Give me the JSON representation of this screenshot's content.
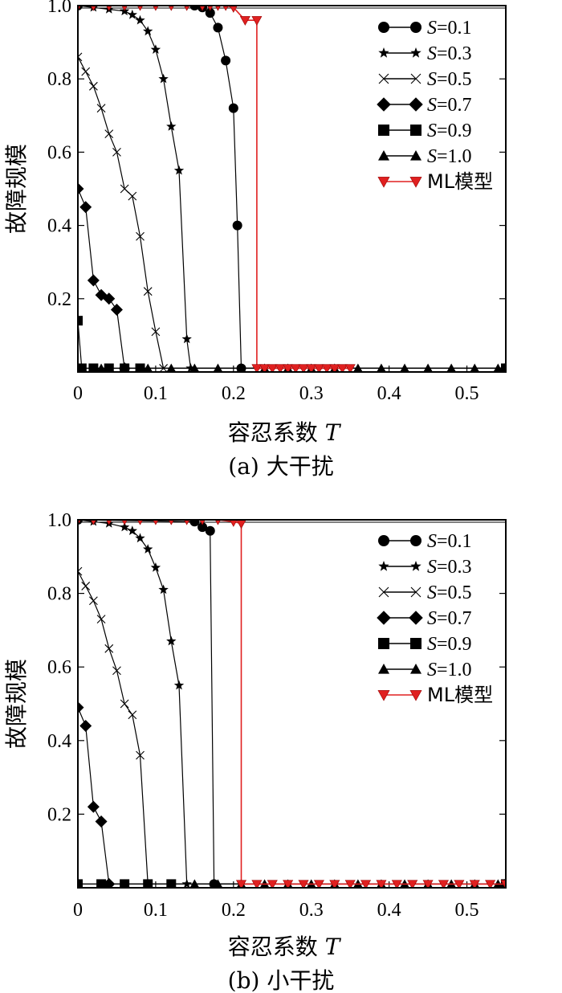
{
  "chart_data": [
    {
      "type": "line",
      "caption": "(a) 大干扰",
      "xlabel": "容忍系数",
      "xlabel_var": "T",
      "ylabel": "故障规模",
      "xlim": [
        0,
        0.55
      ],
      "ylim": [
        0,
        1.0
      ],
      "xticks": [
        "0",
        "0.1",
        "0.2",
        "0.3",
        "0.4",
        "0.5"
      ],
      "yticks": [
        "0.2",
        "0.4",
        "0.6",
        "0.8",
        "1.0"
      ],
      "legend_position": "top-right",
      "series": [
        {
          "name": "S=0.1",
          "label_var": "S",
          "label_rest": "=0.1",
          "marker": "circle",
          "color": "#000000",
          "x": [
            0,
            0.15,
            0.16,
            0.17,
            0.18,
            0.19,
            0.2,
            0.205,
            0.21,
            0.55
          ],
          "y": [
            1.0,
            1.0,
            0.995,
            0.98,
            0.94,
            0.85,
            0.72,
            0.4,
            0.01,
            0.01
          ]
        },
        {
          "name": "S=0.3",
          "label_var": "S",
          "label_rest": "=0.3",
          "marker": "star",
          "color": "#000000",
          "x": [
            0,
            0.02,
            0.04,
            0.06,
            0.07,
            0.08,
            0.09,
            0.1,
            0.11,
            0.12,
            0.13,
            0.14,
            0.145,
            0.55
          ],
          "y": [
            1.0,
            0.995,
            0.99,
            0.985,
            0.975,
            0.96,
            0.93,
            0.88,
            0.8,
            0.67,
            0.55,
            0.09,
            0.01,
            0.01
          ]
        },
        {
          "name": "S=0.5",
          "label_var": "S",
          "label_rest": "=0.5",
          "marker": "cross",
          "color": "#000000",
          "x": [
            0,
            0.01,
            0.02,
            0.03,
            0.04,
            0.05,
            0.06,
            0.07,
            0.08,
            0.09,
            0.1,
            0.11,
            0.55
          ],
          "y": [
            0.86,
            0.82,
            0.78,
            0.72,
            0.65,
            0.6,
            0.5,
            0.48,
            0.37,
            0.22,
            0.11,
            0.01,
            0.01
          ]
        },
        {
          "name": "S=0.7",
          "label_var": "S",
          "label_rest": "=0.7",
          "marker": "diamond",
          "color": "#000000",
          "x": [
            0,
            0.01,
            0.02,
            0.03,
            0.04,
            0.05,
            0.06,
            0.55
          ],
          "y": [
            0.5,
            0.45,
            0.25,
            0.21,
            0.2,
            0.17,
            0.01,
            0.01
          ]
        },
        {
          "name": "S=0.9",
          "label_var": "S",
          "label_rest": "=0.9",
          "marker": "square",
          "color": "#000000",
          "x": [
            0,
            0.005,
            0.02,
            0.04,
            0.06,
            0.08,
            0.55
          ],
          "y": [
            0.14,
            0.01,
            0.01,
            0.01,
            0.01,
            0.01,
            0.01
          ]
        },
        {
          "name": "S=1.0",
          "label_var": "S",
          "label_rest": "=1.0",
          "marker": "triangle",
          "color": "#000000",
          "x": [
            0,
            0.03,
            0.06,
            0.09,
            0.12,
            0.15,
            0.18,
            0.21,
            0.24,
            0.27,
            0.3,
            0.33,
            0.36,
            0.39,
            0.42,
            0.45,
            0.48,
            0.51,
            0.54
          ],
          "y": [
            0.01,
            0.01,
            0.01,
            0.01,
            0.01,
            0.01,
            0.01,
            0.01,
            0.01,
            0.01,
            0.01,
            0.01,
            0.01,
            0.01,
            0.01,
            0.01,
            0.01,
            0.01,
            0.01
          ]
        },
        {
          "name": "ML模型",
          "label_var": "",
          "label_rest": "ML模型",
          "marker": "triangle-down",
          "color": "#e02020",
          "x": [
            0,
            0.02,
            0.04,
            0.06,
            0.08,
            0.1,
            0.12,
            0.14,
            0.16,
            0.17,
            0.18,
            0.19,
            0.2,
            0.215,
            0.23,
            0.23,
            0.24,
            0.25,
            0.26,
            0.27,
            0.28,
            0.29,
            0.3,
            0.31,
            0.32,
            0.33,
            0.34,
            0.35
          ],
          "y": [
            1.0,
            1.0,
            1.0,
            1.0,
            1.0,
            1.0,
            1.0,
            1.0,
            1.0,
            1.0,
            1.0,
            1.0,
            0.995,
            0.96,
            0.96,
            0.01,
            0.01,
            0.01,
            0.01,
            0.01,
            0.01,
            0.01,
            0.01,
            0.01,
            0.01,
            0.01,
            0.01,
            0.01
          ]
        }
      ]
    },
    {
      "type": "line",
      "caption": "(b) 小干扰",
      "xlabel": "容忍系数",
      "xlabel_var": "T",
      "ylabel": "故障规模",
      "xlim": [
        0,
        0.55
      ],
      "ylim": [
        0,
        1.0
      ],
      "xticks": [
        "0",
        "0.1",
        "0.2",
        "0.3",
        "0.4",
        "0.5"
      ],
      "yticks": [
        "0.2",
        "0.4",
        "0.6",
        "0.8",
        "1.0"
      ],
      "legend_position": "top-right",
      "series": [
        {
          "name": "S=0.1",
          "label_var": "S",
          "label_rest": "=0.1",
          "marker": "circle",
          "color": "#000000",
          "x": [
            0,
            0.15,
            0.16,
            0.17,
            0.175,
            0.55
          ],
          "y": [
            1.0,
            0.995,
            0.98,
            0.97,
            0.01,
            0.01
          ]
        },
        {
          "name": "S=0.3",
          "label_var": "S",
          "label_rest": "=0.3",
          "marker": "star",
          "color": "#000000",
          "x": [
            0,
            0.02,
            0.04,
            0.06,
            0.07,
            0.08,
            0.09,
            0.1,
            0.11,
            0.12,
            0.13,
            0.14,
            0.55
          ],
          "y": [
            1.0,
            0.995,
            0.99,
            0.98,
            0.97,
            0.95,
            0.92,
            0.87,
            0.81,
            0.67,
            0.55,
            0.01,
            0.01
          ]
        },
        {
          "name": "S=0.5",
          "label_var": "S",
          "label_rest": "=0.5",
          "marker": "cross",
          "color": "#000000",
          "x": [
            0,
            0.01,
            0.02,
            0.03,
            0.04,
            0.05,
            0.06,
            0.07,
            0.08,
            0.09,
            0.55
          ],
          "y": [
            0.86,
            0.82,
            0.78,
            0.73,
            0.65,
            0.59,
            0.5,
            0.47,
            0.36,
            0.01,
            0.01
          ]
        },
        {
          "name": "S=0.7",
          "label_var": "S",
          "label_rest": "=0.7",
          "marker": "diamond",
          "color": "#000000",
          "x": [
            0,
            0.01,
            0.02,
            0.03,
            0.04,
            0.55
          ],
          "y": [
            0.49,
            0.44,
            0.22,
            0.18,
            0.01,
            0.01
          ]
        },
        {
          "name": "S=0.9",
          "label_var": "S",
          "label_rest": "=0.9",
          "marker": "square",
          "color": "#000000",
          "x": [
            0,
            0.03,
            0.06,
            0.09,
            0.12,
            0.55
          ],
          "y": [
            0.01,
            0.01,
            0.01,
            0.01,
            0.01,
            0.01
          ]
        },
        {
          "name": "S=1.0",
          "label_var": "S",
          "label_rest": "=1.0",
          "marker": "triangle",
          "color": "#000000",
          "x": [
            0,
            0.03,
            0.06,
            0.09,
            0.12,
            0.15,
            0.18,
            0.21,
            0.24,
            0.27,
            0.3,
            0.33,
            0.36,
            0.39,
            0.42,
            0.45,
            0.48,
            0.51,
            0.54
          ],
          "y": [
            0.01,
            0.01,
            0.01,
            0.01,
            0.01,
            0.01,
            0.01,
            0.01,
            0.01,
            0.01,
            0.01,
            0.01,
            0.01,
            0.01,
            0.01,
            0.01,
            0.01,
            0.01,
            0.01
          ]
        },
        {
          "name": "ML模型",
          "label_var": "",
          "label_rest": "ML模型",
          "marker": "triangle-down",
          "color": "#e02020",
          "x": [
            0,
            0.02,
            0.04,
            0.06,
            0.08,
            0.1,
            0.12,
            0.14,
            0.16,
            0.18,
            0.2,
            0.21,
            0.21,
            0.23,
            0.25,
            0.27,
            0.29,
            0.31,
            0.33,
            0.35,
            0.37,
            0.39,
            0.41,
            0.43,
            0.45,
            0.47,
            0.49,
            0.51,
            0.53,
            0.55
          ],
          "y": [
            1.0,
            1.0,
            1.0,
            1.0,
            1.0,
            1.0,
            1.0,
            1.0,
            1.0,
            1.0,
            0.995,
            0.99,
            0.01,
            0.01,
            0.01,
            0.01,
            0.01,
            0.01,
            0.01,
            0.01,
            0.01,
            0.01,
            0.01,
            0.01,
            0.01,
            0.01,
            0.01,
            0.01,
            0.01,
            0.01
          ]
        }
      ]
    }
  ]
}
